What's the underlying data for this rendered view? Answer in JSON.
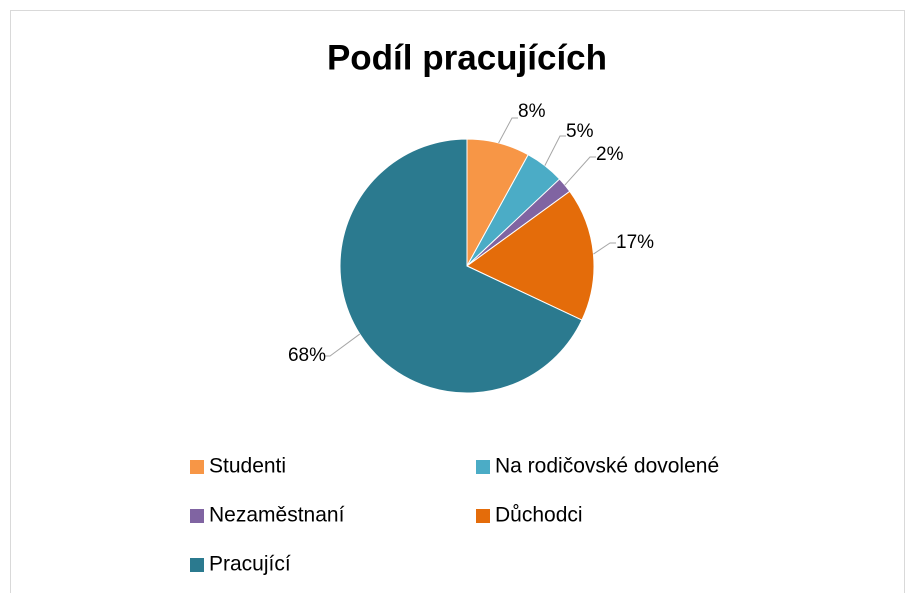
{
  "chart_data": {
    "type": "pie",
    "title": "Podíl pracujících",
    "categories": [
      "Studenti",
      "Na rodičovské dovolené",
      "Nezaměstnaní",
      "Důchodci",
      "Pracující"
    ],
    "values": [
      8,
      5,
      2,
      17,
      68
    ],
    "value_labels": [
      "8%",
      "5%",
      "2%",
      "17%",
      "68%"
    ],
    "colors": [
      "#f79646",
      "#4bacc6",
      "#8064a2",
      "#e46c0a",
      "#2b7a8f"
    ],
    "legend": "bottom"
  }
}
